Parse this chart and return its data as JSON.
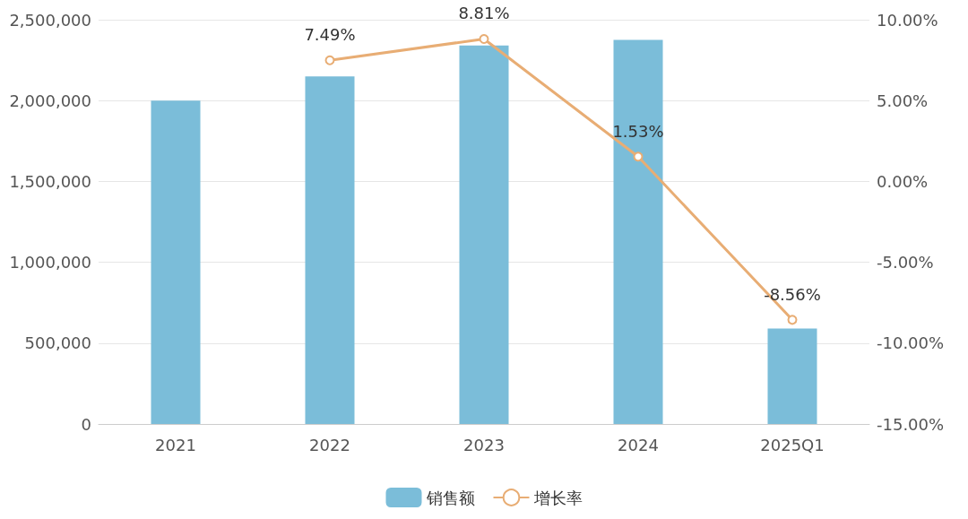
{
  "chart_data": {
    "type": "bar",
    "categories": [
      "2021",
      "2022",
      "2023",
      "2024",
      "2025Q1"
    ],
    "series": [
      {
        "name": "销售额",
        "color": "#7bbdd9",
        "values": [
          2000000,
          2150000,
          2340000,
          2375000,
          590000
        ]
      },
      {
        "name": "增长率",
        "type": "line",
        "axis": "y2",
        "color": "#e8ad74",
        "values": [
          null,
          7.49,
          8.81,
          1.53,
          -8.56
        ],
        "value_labels": [
          null,
          "7.49%",
          "8.81%",
          "1.53%",
          "-8.56%"
        ]
      }
    ],
    "ylim": [
      0,
      2500000
    ],
    "yticks": [
      {
        "value": 0,
        "label": "0"
      },
      {
        "value": 500000,
        "label": "500,000"
      },
      {
        "value": 1000000,
        "label": "1,000,000"
      },
      {
        "value": 1500000,
        "label": "1,500,000"
      },
      {
        "value": 2000000,
        "label": "2,000,000"
      },
      {
        "value": 2500000,
        "label": "2,500,000"
      }
    ],
    "y2lim": [
      -15,
      10
    ],
    "y2ticks": [
      {
        "value": -15,
        "label": "-15.00%"
      },
      {
        "value": -10,
        "label": "-10.00%"
      },
      {
        "value": -5,
        "label": "-5.00%"
      },
      {
        "value": 0,
        "label": "0.00%"
      },
      {
        "value": 5,
        "label": "5.00%"
      },
      {
        "value": 10,
        "label": "10.00%"
      }
    ],
    "grid": "y",
    "legend": "bottom",
    "marker": "circle"
  }
}
